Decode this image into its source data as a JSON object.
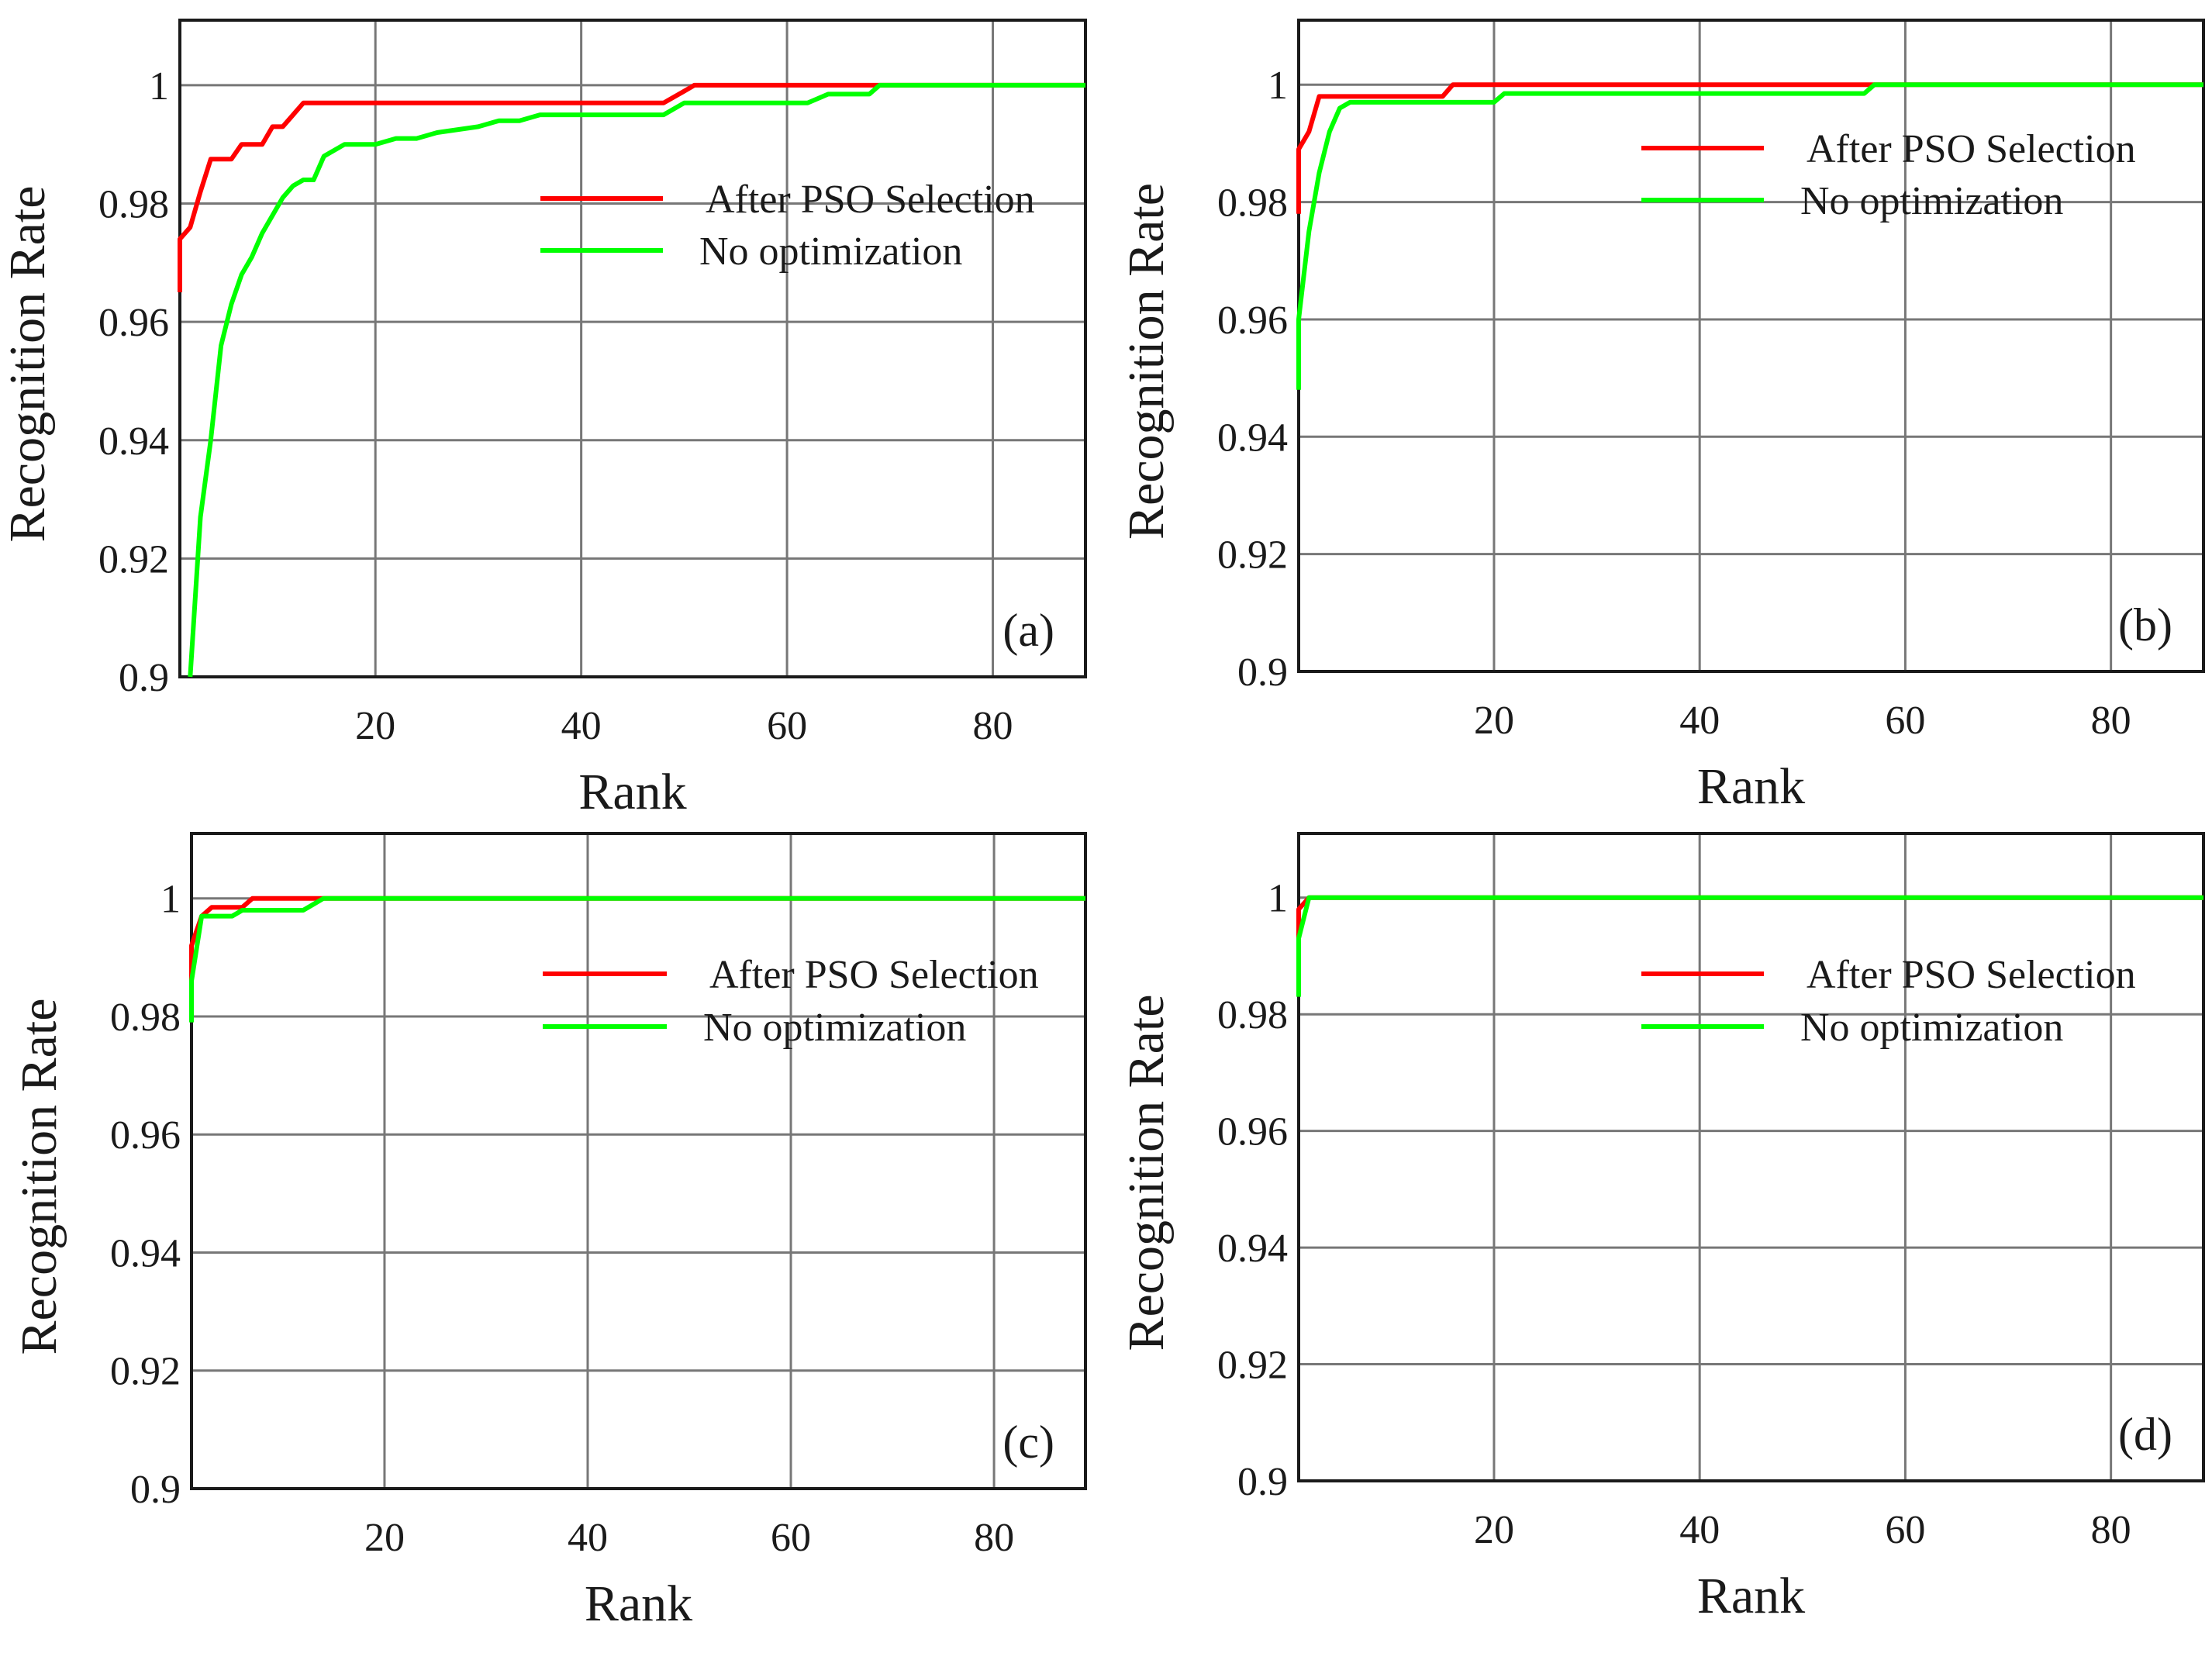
{
  "colors": {
    "after_pso": "#ff0000",
    "no_opt": "#00ff00",
    "grid": "#777777",
    "axis": "#1a1a1a"
  },
  "chart_data": [
    {
      "type": "line",
      "panel_label": "(a)",
      "xlabel": "Rank",
      "ylabel": "Recognition Rate",
      "xlim": [
        1,
        89
      ],
      "ylim": [
        0.9,
        1.011
      ],
      "xticks": [
        20,
        40,
        60,
        80
      ],
      "xtick_labels": [
        "20",
        "40",
        "60",
        "80"
      ],
      "yticks": [
        0.9,
        0.92,
        0.94,
        0.96,
        0.98,
        1.0
      ],
      "ytick_labels": [
        "0.9",
        "0.92",
        "0.94",
        "0.96",
        "0.98",
        "1"
      ],
      "legend_position": "upper-right",
      "series": [
        {
          "name": "After PSO Selection",
          "color": "#ff0000",
          "x": [
            1,
            1,
            2,
            3,
            4,
            5,
            6,
            7,
            8,
            9,
            10,
            11,
            12,
            13,
            14,
            20,
            30,
            40,
            48,
            50,
            51,
            60,
            69,
            89
          ],
          "y": [
            0.965,
            0.974,
            0.976,
            0.982,
            0.9875,
            0.9875,
            0.9875,
            0.99,
            0.99,
            0.99,
            0.993,
            0.993,
            0.995,
            0.997,
            0.997,
            0.997,
            0.997,
            0.997,
            0.997,
            0.999,
            1.0,
            1.0,
            1.0,
            1.0
          ]
        },
        {
          "name": "No optimization",
          "color": "#00ff00",
          "x": [
            2,
            3,
            4,
            5,
            6,
            7,
            8,
            9,
            10,
            11,
            12,
            13,
            14,
            15,
            17,
            20,
            22,
            24,
            26,
            30,
            32,
            34,
            36,
            40,
            44,
            48,
            50,
            55,
            62,
            64,
            68,
            69,
            89
          ],
          "y": [
            0.9,
            0.927,
            0.94,
            0.956,
            0.963,
            0.968,
            0.971,
            0.975,
            0.978,
            0.981,
            0.983,
            0.984,
            0.984,
            0.988,
            0.99,
            0.99,
            0.991,
            0.991,
            0.992,
            0.993,
            0.994,
            0.994,
            0.995,
            0.995,
            0.995,
            0.995,
            0.997,
            0.997,
            0.997,
            0.9985,
            0.9985,
            1.0,
            1.0
          ]
        }
      ]
    },
    {
      "type": "line",
      "panel_label": "(b)",
      "xlabel": "Rank",
      "ylabel": "Recognition Rate",
      "xlim": [
        1,
        89
      ],
      "ylim": [
        0.9,
        1.011
      ],
      "xticks": [
        20,
        40,
        60,
        80
      ],
      "xtick_labels": [
        "20",
        "40",
        "60",
        "80"
      ],
      "yticks": [
        0.9,
        0.92,
        0.94,
        0.96,
        0.98,
        1.0
      ],
      "ytick_labels": [
        "0.9",
        "0.92",
        "0.94",
        "0.96",
        "0.98",
        "1"
      ],
      "legend_position": "upper-right",
      "series": [
        {
          "name": "After PSO Selection",
          "color": "#ff0000",
          "x": [
            1,
            1,
            2,
            3,
            4,
            10,
            15,
            16,
            20,
            40,
            57,
            89
          ],
          "y": [
            0.978,
            0.989,
            0.992,
            0.998,
            0.998,
            0.998,
            0.998,
            1.0,
            1.0,
            1.0,
            1.0,
            1.0
          ]
        },
        {
          "name": "No optimization",
          "color": "#00ff00",
          "x": [
            1,
            1,
            2,
            3,
            4,
            5,
            6,
            10,
            20,
            21,
            30,
            56,
            57,
            89
          ],
          "y": [
            0.948,
            0.96,
            0.975,
            0.985,
            0.992,
            0.996,
            0.997,
            0.997,
            0.997,
            0.9985,
            0.9985,
            0.9985,
            1.0,
            1.0
          ]
        }
      ]
    },
    {
      "type": "line",
      "panel_label": "(c)",
      "xlabel": "Rank",
      "ylabel": "Recognition Rate",
      "xlim": [
        1,
        89
      ],
      "ylim": [
        0.9,
        1.011
      ],
      "xticks": [
        20,
        40,
        60,
        80
      ],
      "xtick_labels": [
        "20",
        "40",
        "60",
        "80"
      ],
      "yticks": [
        0.9,
        0.92,
        0.94,
        0.96,
        0.98,
        1.0
      ],
      "ytick_labels": [
        "0.9",
        "0.92",
        "0.94",
        "0.96",
        "0.98",
        "1"
      ],
      "legend_position": "upper-right",
      "series": [
        {
          "name": "After PSO Selection",
          "color": "#ff0000",
          "x": [
            1,
            1,
            2,
            3,
            4,
            6,
            7,
            10,
            13,
            89
          ],
          "y": [
            0.986,
            0.992,
            0.997,
            0.9985,
            0.9985,
            0.9985,
            1.0,
            1.0,
            1.0,
            1.0
          ]
        },
        {
          "name": "No optimization",
          "color": "#00ff00",
          "x": [
            1,
            1,
            2,
            3,
            4,
            5,
            6,
            7,
            12,
            13,
            14,
            89
          ],
          "y": [
            0.979,
            0.986,
            0.997,
            0.997,
            0.997,
            0.997,
            0.998,
            0.998,
            0.998,
            0.999,
            1.0,
            1.0
          ]
        }
      ]
    },
    {
      "type": "line",
      "panel_label": "(d)",
      "xlabel": "Rank",
      "ylabel": "Recognition Rate",
      "xlim": [
        1,
        89
      ],
      "ylim": [
        0.9,
        1.011
      ],
      "xticks": [
        20,
        40,
        60,
        80
      ],
      "xtick_labels": [
        "20",
        "40",
        "60",
        "80"
      ],
      "yticks": [
        0.9,
        0.92,
        0.94,
        0.96,
        0.98,
        1.0
      ],
      "ytick_labels": [
        "0.9",
        "0.92",
        "0.94",
        "0.96",
        "0.98",
        "1"
      ],
      "legend_position": "upper-right",
      "series": [
        {
          "name": "After PSO Selection",
          "color": "#ff0000",
          "x": [
            1,
            1,
            2,
            89
          ],
          "y": [
            0.993,
            0.998,
            1.0,
            1.0
          ]
        },
        {
          "name": "No optimization",
          "color": "#00ff00",
          "x": [
            1,
            1,
            2,
            89
          ],
          "y": [
            0.983,
            0.993,
            1.0,
            1.0
          ]
        }
      ]
    }
  ]
}
